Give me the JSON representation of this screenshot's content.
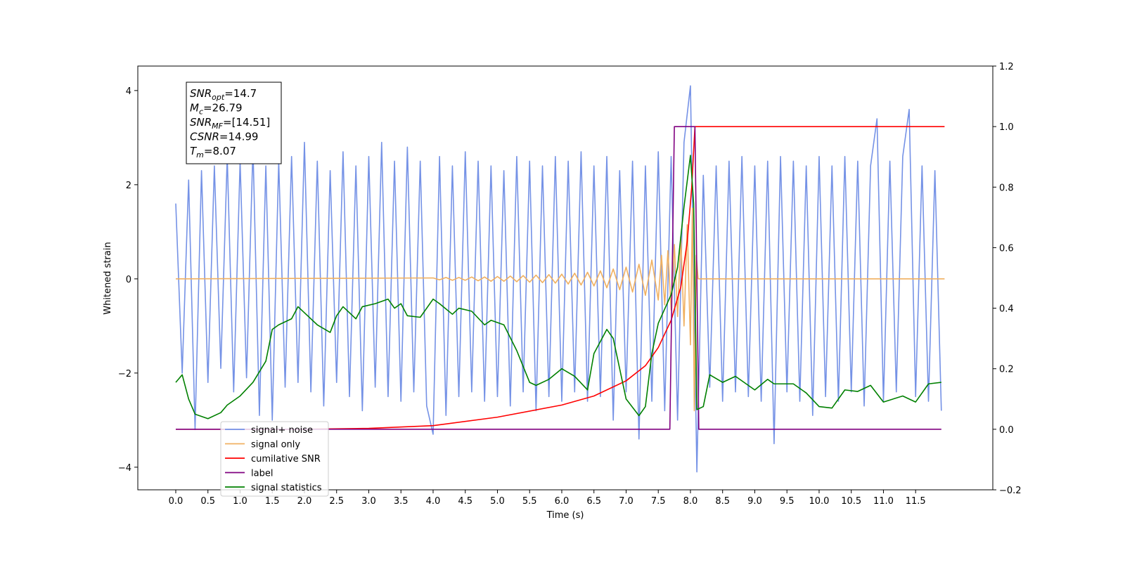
{
  "chart_data": {
    "type": "line",
    "x_label": "Time (s)",
    "y_label": "Whitened strain",
    "xlim": [
      -0.59,
      12.7
    ],
    "ylim": [
      -4.48,
      4.52
    ],
    "y2lim": [
      -0.2,
      1.2
    ],
    "xticks": [
      {
        "value": 0,
        "label": "0.0"
      },
      0.5,
      {
        "value": 1,
        "label": "1.0"
      },
      1.5,
      {
        "value": 2,
        "label": "2.0"
      },
      2.5,
      {
        "value": 3,
        "label": "3.0"
      },
      3.5,
      {
        "value": 4,
        "label": "4.0"
      },
      4.5,
      {
        "value": 5,
        "label": "5.0"
      },
      5.5,
      {
        "value": 6,
        "label": "6.0"
      },
      6.5,
      {
        "value": 7,
        "label": "7.0"
      },
      7.5,
      {
        "value": 8,
        "label": "8.0"
      },
      8.5,
      {
        "value": 9,
        "label": "9.0"
      },
      9.5,
      {
        "value": 10,
        "label": "10.0"
      },
      10.5,
      {
        "value": 11,
        "label": "11.0"
      },
      11.5
    ],
    "yticks": [
      {
        "value": -4,
        "label": "−4"
      },
      {
        "value": -2,
        "label": "−2"
      },
      0,
      2,
      4
    ],
    "y2ticks": [
      {
        "value": -0.2,
        "label": "−0.2"
      },
      {
        "value": 0,
        "label": "0.0"
      },
      0.2,
      0.4,
      0.6,
      0.8,
      {
        "value": 1,
        "label": "1.0"
      },
      1.2
    ],
    "grid": false,
    "legend": "lower left",
    "annotations": [
      {
        "symbol": "SNR",
        "subscript": "opt",
        "text": "=14.7"
      },
      {
        "symbol": "M",
        "subscript": "c",
        "text": "=26.79"
      },
      {
        "symbol": "SNR",
        "subscript": "MF",
        "text": "=[14.51]"
      },
      {
        "symbol": "CSNR",
        "subscript": "",
        "text": "=14.99"
      },
      {
        "symbol": "T",
        "subscript": "m",
        "text": "=8.07"
      }
    ],
    "series": [
      {
        "name": "signal+ noise",
        "color": "#7592e6",
        "axis": "y",
        "x": [
          0,
          0.1,
          0.2,
          0.3,
          0.4,
          0.5,
          0.6,
          0.7,
          0.8,
          0.9,
          1,
          1.1,
          1.2,
          1.3,
          1.4,
          1.5,
          1.6,
          1.7,
          1.8,
          1.9,
          2,
          2.1,
          2.2,
          2.3,
          2.4,
          2.5,
          2.6,
          2.7,
          2.8,
          2.9,
          3,
          3.1,
          3.2,
          3.3,
          3.4,
          3.5,
          3.6,
          3.7,
          3.8,
          3.9,
          4,
          4.1,
          4.2,
          4.3,
          4.4,
          4.5,
          4.6,
          4.7,
          4.8,
          4.9,
          5,
          5.1,
          5.2,
          5.3,
          5.4,
          5.5,
          5.6,
          5.7,
          5.8,
          5.9,
          6,
          6.1,
          6.2,
          6.3,
          6.4,
          6.5,
          6.6,
          6.7,
          6.8,
          6.9,
          7,
          7.1,
          7.2,
          7.3,
          7.4,
          7.5,
          7.6,
          7.7,
          7.8,
          7.9,
          8,
          8.1,
          8.2,
          8.3,
          8.4,
          8.5,
          8.6,
          8.7,
          8.8,
          8.9,
          9,
          9.1,
          9.2,
          9.3,
          9.4,
          9.5,
          9.6,
          9.7,
          9.8,
          9.9,
          10,
          10.1,
          10.2,
          10.3,
          10.4,
          10.5,
          10.6,
          10.7,
          10.8,
          10.9,
          11,
          11.1,
          11.2,
          11.3,
          11.4,
          11.5,
          11.6,
          11.7,
          11.8,
          11.9
        ],
        "values": [
          1.6,
          -2.0,
          2.1,
          -3.2,
          2.3,
          -2.2,
          2.4,
          -1.9,
          2.6,
          -2.4,
          2.5,
          -2.1,
          2.8,
          -2.9,
          2.4,
          -3.0,
          2.5,
          -2.3,
          2.6,
          -2.2,
          2.9,
          -2.4,
          2.5,
          -2.7,
          2.3,
          -2.2,
          2.7,
          -2.5,
          2.4,
          -2.8,
          2.6,
          -2.3,
          2.9,
          -2.5,
          2.5,
          -2.6,
          2.8,
          -2.4,
          2.5,
          -2.7,
          -3.3,
          2.6,
          -2.9,
          2.4,
          -2.5,
          2.7,
          -2.4,
          2.5,
          -2.6,
          2.4,
          -2.5,
          2.3,
          -2.7,
          2.6,
          -2.4,
          2.5,
          -2.8,
          2.4,
          -2.5,
          2.6,
          -2.6,
          2.5,
          -2.4,
          2.7,
          -2.6,
          2.4,
          -2.5,
          2.6,
          -3.0,
          2.3,
          -2.4,
          2.5,
          -3.4,
          2.4,
          -2.6,
          2.7,
          -2.8,
          2.6,
          -3.0,
          2.9,
          4.1,
          -4.1,
          2.2,
          -2.3,
          2.4,
          -2.6,
          2.5,
          -2.4,
          2.6,
          -2.5,
          2.4,
          -2.6,
          2.5,
          -3.5,
          2.6,
          -2.4,
          2.5,
          -2.6,
          2.4,
          -2.9,
          2.6,
          -2.5,
          2.4,
          -2.6,
          2.6,
          -2.4,
          2.5,
          -2.7,
          2.4,
          3.4,
          -2.6,
          2.5,
          -2.4,
          2.6,
          3.6,
          -2.5,
          2.4,
          -2.6,
          2.3,
          -2.8
        ]
      },
      {
        "name": "signal only",
        "color": "#f0b060",
        "axis": "y",
        "x": [
          0,
          4,
          4.1,
          4.2,
          4.3,
          4.4,
          4.5,
          4.6,
          4.7,
          4.8,
          4.9,
          5,
          5.1,
          5.2,
          5.3,
          5.4,
          5.5,
          5.6,
          5.7,
          5.8,
          5.9,
          6,
          6.1,
          6.2,
          6.3,
          6.4,
          6.5,
          6.6,
          6.7,
          6.8,
          6.9,
          7,
          7.1,
          7.2,
          7.3,
          7.4,
          7.5,
          7.55,
          7.6,
          7.65,
          7.7,
          7.75,
          7.8,
          7.85,
          7.9,
          7.95,
          8,
          8.03,
          8.06,
          8.09,
          8.12,
          11.95
        ],
        "values": [
          0,
          0.02,
          -0.02,
          0.03,
          -0.03,
          0.03,
          -0.03,
          0.04,
          -0.04,
          0.04,
          -0.05,
          0.05,
          -0.05,
          0.06,
          -0.06,
          0.07,
          -0.07,
          0.08,
          -0.08,
          0.09,
          -0.09,
          0.1,
          -0.11,
          0.12,
          -0.13,
          0.14,
          -0.15,
          0.17,
          -0.19,
          0.21,
          -0.23,
          0.25,
          -0.28,
          0.31,
          -0.35,
          0.4,
          -0.45,
          0.5,
          -0.55,
          0.6,
          -0.66,
          0.73,
          -0.8,
          0.9,
          -1.0,
          1.15,
          -1.4,
          1.5,
          -2.8,
          0.5,
          0,
          0
        ]
      },
      {
        "name": "cumilative SNR",
        "color": "#ff0000",
        "axis": "y2",
        "x": [
          0,
          2,
          3,
          4,
          5,
          6,
          6.5,
          7,
          7.3,
          7.5,
          7.7,
          7.85,
          7.95,
          8.02,
          8.07,
          11.95
        ],
        "values": [
          0,
          0,
          0.003,
          0.012,
          0.04,
          0.08,
          0.11,
          0.16,
          0.21,
          0.27,
          0.36,
          0.47,
          0.62,
          0.8,
          1,
          1
        ]
      },
      {
        "name": "label",
        "color": "#800080",
        "axis": "y2",
        "x": [
          0,
          7.68,
          7.75,
          8.07,
          8.13,
          11.9
        ],
        "values": [
          0,
          0,
          1,
          1,
          0,
          0
        ]
      },
      {
        "name": "signal statistics",
        "color": "#008000",
        "axis": "y2",
        "x": [
          0,
          0.1,
          0.2,
          0.3,
          0.5,
          0.7,
          0.8,
          1,
          1.2,
          1.4,
          1.5,
          1.6,
          1.8,
          1.9,
          2,
          2.2,
          2.4,
          2.5,
          2.6,
          2.8,
          2.9,
          3.1,
          3.3,
          3.4,
          3.5,
          3.6,
          3.8,
          4,
          4.1,
          4.3,
          4.4,
          4.6,
          4.8,
          4.9,
          5.1,
          5.3,
          5.5,
          5.6,
          5.8,
          6,
          6.2,
          6.4,
          6.5,
          6.7,
          6.8,
          7,
          7.2,
          7.3,
          7.4,
          7.5,
          7.7,
          7.8,
          7.9,
          8,
          8.05,
          8.1,
          8.2,
          8.3,
          8.5,
          8.7,
          9,
          9.2,
          9.3,
          9.6,
          9.8,
          10,
          10.2,
          10.4,
          10.6,
          10.8,
          11,
          11.3,
          11.5,
          11.7,
          11.9
        ],
        "values": [
          0.155,
          0.18,
          0.1,
          0.05,
          0.035,
          0.055,
          0.08,
          0.11,
          0.155,
          0.225,
          0.33,
          0.345,
          0.365,
          0.405,
          0.385,
          0.345,
          0.32,
          0.375,
          0.405,
          0.365,
          0.405,
          0.415,
          0.43,
          0.4,
          0.415,
          0.375,
          0.37,
          0.43,
          0.415,
          0.38,
          0.4,
          0.39,
          0.345,
          0.36,
          0.345,
          0.26,
          0.155,
          0.145,
          0.165,
          0.2,
          0.175,
          0.13,
          0.25,
          0.33,
          0.3,
          0.1,
          0.045,
          0.075,
          0.25,
          0.35,
          0.445,
          0.535,
          0.735,
          0.905,
          0.745,
          0.065,
          0.075,
          0.18,
          0.155,
          0.175,
          0.13,
          0.165,
          0.15,
          0.15,
          0.12,
          0.075,
          0.07,
          0.13,
          0.125,
          0.145,
          0.09,
          0.11,
          0.09,
          0.15,
          0.155
        ]
      }
    ]
  }
}
